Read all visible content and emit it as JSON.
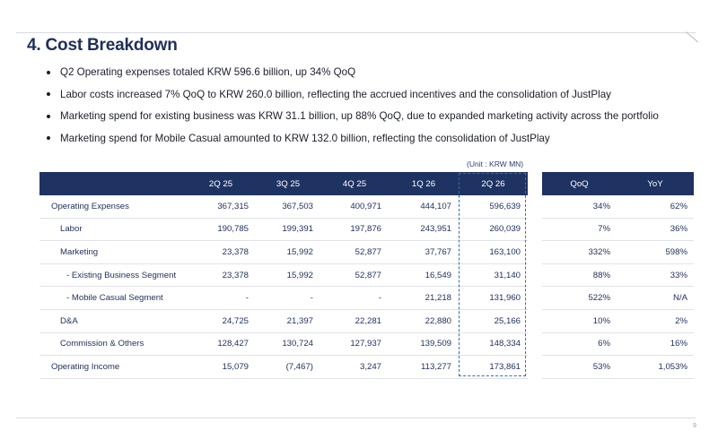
{
  "title": "4. Cost Breakdown",
  "bullets": [
    "Q2 Operating expenses totaled KRW 596.6 billion, up 34% QoQ",
    "Labor costs increased 7% QoQ to KRW 260.0 billion, reflecting the accrued incentives and the consolidation of JustPlay",
    "Marketing spend for existing business was KRW 31.1 billion, up 88% QoQ, due to expanded marketing activity across the portfolio",
    "Marketing spend for Mobile Casual amounted to KRW 132.0 billion, reflecting the consolidation of JustPlay"
  ],
  "unit": "(Unit : KRW MN)",
  "table": {
    "headers": [
      "",
      "2Q 25",
      "3Q 25",
      "4Q 25",
      "1Q 26",
      "2Q 26"
    ],
    "rows": [
      {
        "label": "Operating Expenses",
        "values": [
          "367,315",
          "367,503",
          "400,971",
          "444,107",
          "596,639"
        ]
      },
      {
        "label": "Labor",
        "values": [
          "190,785",
          "199,391",
          "197,876",
          "243,951",
          "260,039"
        ]
      },
      {
        "label": "Marketing",
        "values": [
          "23,378",
          "15,992",
          "52,877",
          "37,767",
          "163,100"
        ]
      },
      {
        "label": "- Existing Business Segment",
        "values": [
          "23,378",
          "15,992",
          "52,877",
          "16,549",
          "31,140"
        ]
      },
      {
        "label": "- Mobile Casual Segment",
        "values": [
          "-",
          "-",
          "-",
          "21,218",
          "131,960"
        ]
      },
      {
        "label": "D&A",
        "values": [
          "24,725",
          "21,397",
          "22,281",
          "22,880",
          "25,166"
        ]
      },
      {
        "label": "Commission & Others",
        "values": [
          "128,427",
          "130,724",
          "127,937",
          "139,509",
          "148,334"
        ]
      },
      {
        "label": "Operating Income",
        "values": [
          "15,079",
          "(7,467)",
          "3,247",
          "113,277",
          "173,861"
        ]
      }
    ]
  },
  "change_table": {
    "headers": [
      "QoQ",
      "YoY"
    ],
    "rows": [
      [
        "34%",
        "62%"
      ],
      [
        "7%",
        "36%"
      ],
      [
        "332%",
        "598%"
      ],
      [
        "88%",
        "33%"
      ],
      [
        "522%",
        "N/A"
      ],
      [
        "10%",
        "2%"
      ],
      [
        "6%",
        "16%"
      ],
      [
        "53%",
        "1,053%"
      ]
    ]
  },
  "page_number": "9",
  "colors": {
    "header_bg": "#1e3362",
    "title": "#1e2f5a",
    "highlight_border": "#2b6fb2"
  }
}
